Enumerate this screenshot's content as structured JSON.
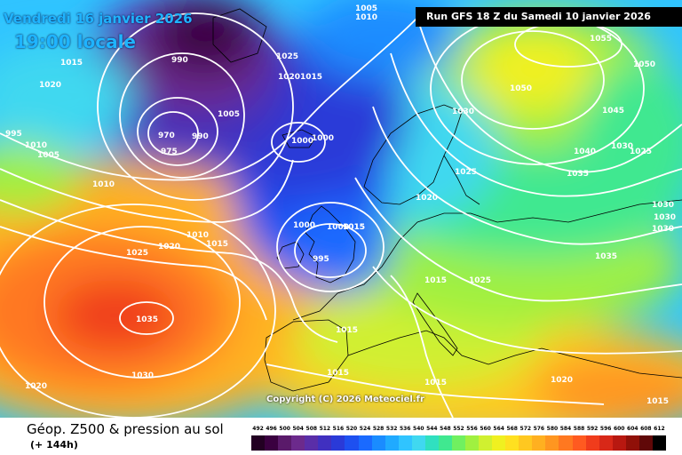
{
  "header": {
    "valid_date": "Vendredi 16 janvier 2026",
    "valid_time": "19:00 locale",
    "run": "Run GFS 18 Z du Samedi 10 janvier 2026"
  },
  "map": {
    "copyright": "Copyright (C) 2026 Meteociel.fr",
    "pressure_labels": [
      "1005",
      "1010",
      "1015",
      "1020",
      "995",
      "1010",
      "1005",
      "1010",
      "990",
      "1025",
      "1020",
      "1015",
      "970",
      "975",
      "990",
      "1005",
      "1000",
      "1000",
      "1030",
      "1055",
      "1050",
      "1050",
      "1045",
      "1040",
      "1030",
      "1025",
      "1035",
      "1025",
      "1020",
      "1030",
      "1030",
      "1030",
      "1000",
      "1000",
      "1015",
      "995",
      "1010",
      "1015",
      "1020",
      "1025",
      "1035",
      "1015",
      "1025",
      "1015",
      "1035",
      "1015",
      "1015",
      "1015",
      "1030",
      "1020",
      "1020",
      "1015"
    ]
  },
  "footer": {
    "title": "Géop. Z500 & pression au sol",
    "subtitle": "(+ 144h)",
    "legend_ticks": [
      "492",
      "496",
      "500",
      "504",
      "508",
      "512",
      "516",
      "520",
      "524",
      "528",
      "532",
      "536",
      "540",
      "544",
      "548",
      "552",
      "556",
      "560",
      "564",
      "568",
      "572",
      "576",
      "580",
      "584",
      "588",
      "592",
      "596",
      "600",
      "604",
      "608",
      "612"
    ],
    "legend_colors": [
      "#220022",
      "#3a0040",
      "#5a1a6a",
      "#6c2a8c",
      "#5a2ea8",
      "#4030c0",
      "#2a3ad8",
      "#1e50f0",
      "#1a6aff",
      "#1a8cff",
      "#20aaff",
      "#30c4ff",
      "#40d8f0",
      "#30e0c0",
      "#40e890",
      "#70f060",
      "#a0f040",
      "#d0f030",
      "#f0f020",
      "#ffe020",
      "#ffc820",
      "#ffb020",
      "#ff9620",
      "#ff7820",
      "#ff5a20",
      "#f03c1c",
      "#d82818",
      "#b81810",
      "#901008",
      "#600808",
      "#000000"
    ]
  }
}
